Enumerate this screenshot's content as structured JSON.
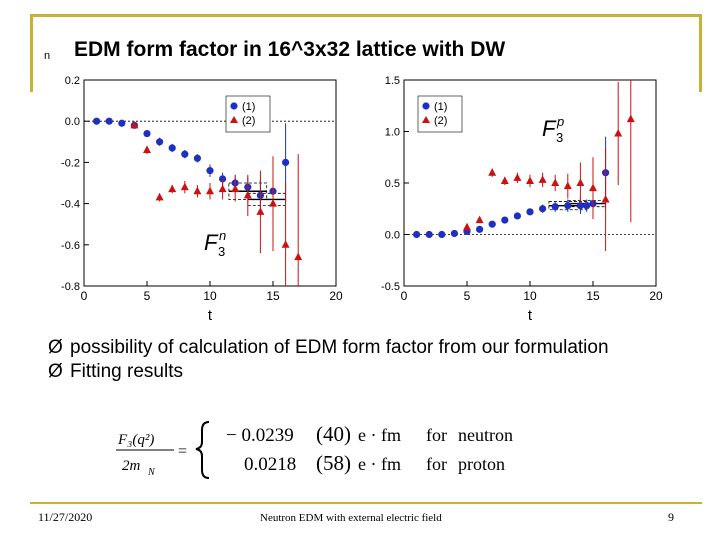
{
  "slide": {
    "title": "EDM form factor in 16^3x32 lattice with DW",
    "title_bullet": "n",
    "bullets": [
      {
        "marker": "Ø",
        "text": "possibility of calculation of EDM form factor from our formulation"
      },
      {
        "marker": "Ø",
        "text": "Fitting results"
      }
    ],
    "formula": {
      "lhs_num": "F₃(q²)",
      "lhs_den": "2m",
      "lhs_den_sub": "N",
      "equals": "=",
      "row1": {
        "value": "− 0.0239",
        "err": "(40)",
        "unit": "e · fm",
        "word": "for",
        "target": "neutron"
      },
      "row2": {
        "value": "0.0218",
        "err": "(58)",
        "unit": "e · fm",
        "word": "for",
        "target": "proton"
      }
    },
    "footer": {
      "date": "11/27/2020",
      "center": "Neutron EDM with external electric field",
      "page": "9"
    }
  },
  "colors": {
    "frame": "#c9b037",
    "series1": "#1f2fbf",
    "series2": "#cc1111",
    "ref": "#000000"
  },
  "chart_data": [
    {
      "type": "scatter",
      "panel": "left",
      "label_main": "F",
      "label_sub": "3",
      "label_sup": "n",
      "xlabel": "t",
      "xlim": [
        0,
        20
      ],
      "ylim": [
        -0.8,
        0.2
      ],
      "xticks": [
        0,
        5,
        10,
        15,
        20
      ],
      "yticks": [
        0.2,
        0.0,
        -0.2,
        -0.4,
        -0.6,
        -0.8
      ],
      "ytick_labels": [
        "0.2",
        "0.0",
        "-0.2",
        "-0.4",
        "-0.6",
        "-0.8"
      ],
      "legend": [
        "(1)",
        "(2)"
      ],
      "legend_position": "top-right",
      "zero_line": true,
      "series": [
        {
          "name": "(1)",
          "marker": "circle",
          "x": [
            1,
            2,
            3,
            4,
            5,
            6,
            7,
            8,
            9,
            10,
            11,
            12,
            13,
            14,
            15,
            16
          ],
          "y": [
            0.0,
            0.0,
            -0.01,
            -0.02,
            -0.06,
            -0.1,
            -0.13,
            -0.16,
            -0.18,
            -0.24,
            -0.28,
            -0.3,
            -0.32,
            -0.36,
            -0.34,
            -0.2
          ],
          "err": [
            0.005,
            0.005,
            0.008,
            0.01,
            0.015,
            0.02,
            0.02,
            0.02,
            0.02,
            0.03,
            0.03,
            0.04,
            0.05,
            0.08,
            0.1,
            0.19
          ]
        },
        {
          "name": "(2)",
          "marker": "triangle",
          "x": [
            4,
            5,
            6,
            7,
            8,
            9,
            10,
            11,
            12,
            13,
            14,
            15,
            16,
            17
          ],
          "y": [
            -0.02,
            -0.14,
            -0.37,
            -0.33,
            -0.32,
            -0.34,
            -0.34,
            -0.33,
            -0.33,
            -0.36,
            -0.44,
            -0.4,
            -0.6,
            -0.66
          ],
          "err": [
            0.01,
            0.02,
            0.02,
            0.02,
            0.03,
            0.03,
            0.04,
            0.05,
            0.06,
            0.1,
            0.2,
            0.23,
            0.3,
            0.5
          ]
        }
      ],
      "fit_bands": [
        {
          "x": [
            11.5,
            14.5
          ],
          "y": -0.34,
          "err": 0.04
        },
        {
          "x": [
            13,
            16
          ],
          "y": -0.38,
          "err": 0.03
        }
      ]
    },
    {
      "type": "scatter",
      "panel": "right",
      "label_main": "F",
      "label_sub": "3",
      "label_sup": "p",
      "xlabel": "t",
      "xlim": [
        0,
        20
      ],
      "ylim": [
        -0.5,
        1.5
      ],
      "xticks": [
        0,
        5,
        10,
        15,
        20
      ],
      "yticks": [
        1.5,
        1.0,
        0.5,
        0.0,
        -0.5
      ],
      "ytick_labels": [
        "1.5",
        "1.0",
        "0.5",
        "0.0",
        "-0.5"
      ],
      "legend": [
        "(1)",
        "(2)"
      ],
      "legend_position": "top-left",
      "zero_line": true,
      "series": [
        {
          "name": "(1)",
          "marker": "circle",
          "x": [
            1,
            2,
            3,
            4,
            5,
            6,
            7,
            8,
            9,
            10,
            11,
            12,
            13,
            14,
            15,
            16
          ],
          "y": [
            0.0,
            0.0,
            0.0,
            0.01,
            0.03,
            0.05,
            0.1,
            0.14,
            0.18,
            0.22,
            0.25,
            0.27,
            0.28,
            0.28,
            0.3,
            0.6
          ],
          "err": [
            0.005,
            0.005,
            0.01,
            0.01,
            0.015,
            0.02,
            0.02,
            0.02,
            0.02,
            0.03,
            0.04,
            0.05,
            0.06,
            0.08,
            0.1,
            0.35
          ]
        },
        {
          "name": "(2)",
          "marker": "triangle",
          "x": [
            5,
            6,
            7,
            8,
            9,
            10,
            11,
            12,
            13,
            14,
            15,
            16,
            17,
            18
          ],
          "y": [
            0.07,
            0.14,
            0.6,
            0.52,
            0.55,
            0.52,
            0.53,
            0.5,
            0.47,
            0.5,
            0.45,
            0.34,
            0.98,
            1.12
          ],
          "err": [
            0.02,
            0.03,
            0.04,
            0.04,
            0.05,
            0.06,
            0.07,
            0.08,
            0.12,
            0.2,
            0.3,
            0.5,
            0.5,
            1.0
          ]
        },
        {
          "name": "(1) extra",
          "marker": "circle",
          "x": [
            14.5
          ],
          "y": [
            0.28
          ],
          "err": [
            0.06
          ]
        }
      ],
      "fit_bands": [
        {
          "x": [
            11.5,
            14.5
          ],
          "y": 0.28,
          "err": 0.04
        },
        {
          "x": [
            13,
            16
          ],
          "y": 0.3,
          "err": 0.03
        }
      ]
    }
  ]
}
